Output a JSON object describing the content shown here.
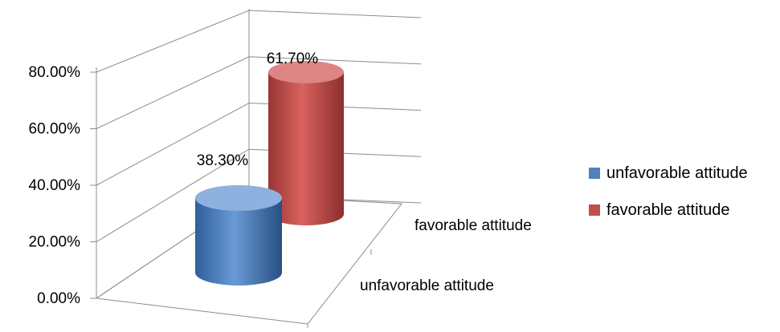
{
  "chart_data": {
    "type": "bar",
    "style": "3d-cylinder",
    "categories": [
      "unfavorable attitude",
      "favorable attitude"
    ],
    "series": [
      {
        "name": "unfavorable attitude",
        "values": [
          38.3,
          null
        ],
        "color": "#4F81BD",
        "label": "38.30%"
      },
      {
        "name": "favorable attitude",
        "values": [
          null,
          61.7
        ],
        "color": "#C0504D",
        "label": "61.70%"
      }
    ],
    "ylim": [
      0,
      80
    ],
    "yticks": [
      "0.00%",
      "20.00%",
      "40.00%",
      "60.00%",
      "80.00%"
    ],
    "grid": true,
    "legend": "right",
    "xlabel": "",
    "ylabel": "",
    "title": ""
  }
}
